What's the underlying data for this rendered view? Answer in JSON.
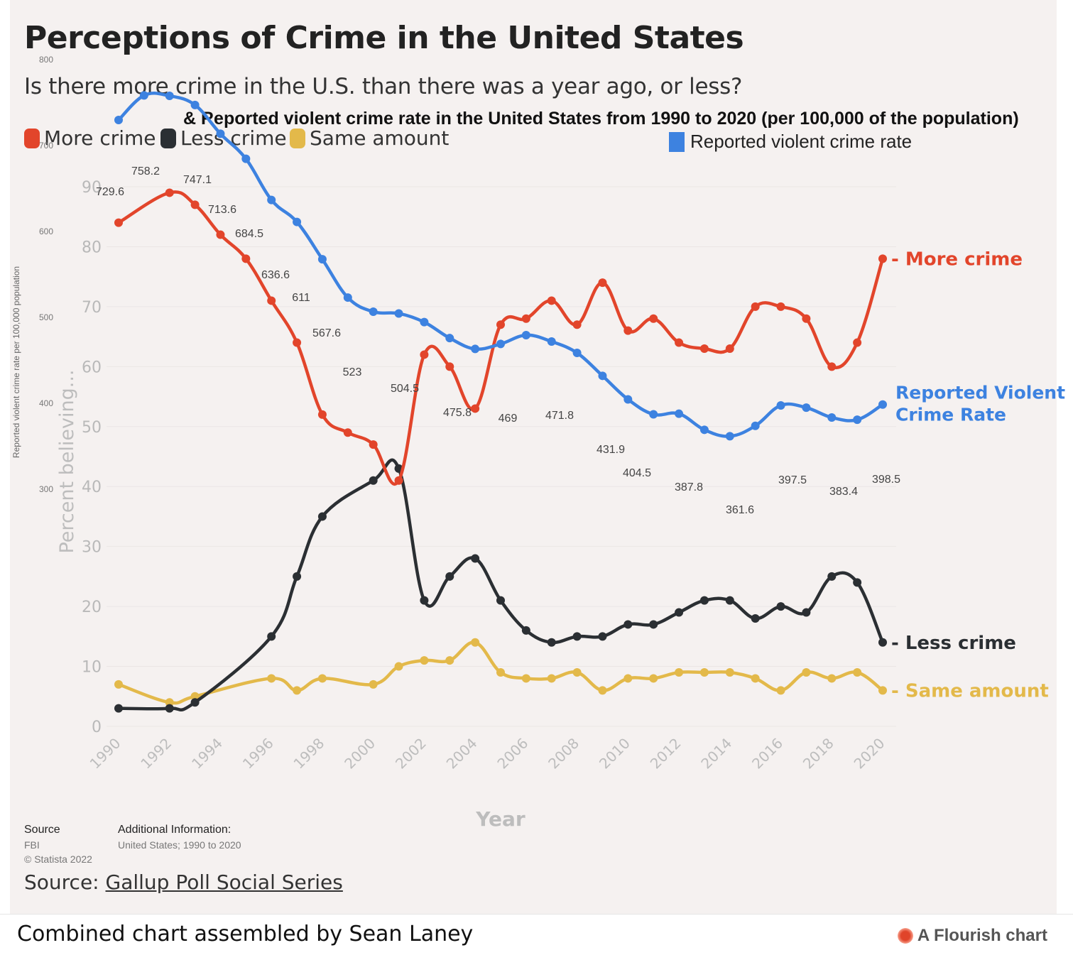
{
  "title": "Perceptions of Crime in the United States",
  "subtitle": "Is there more crime in the U.S. than there was a year ago, or less?",
  "subtitle2": "& Reported violent crime rate in the United States from 1990 to 2020 (per 100,000 of the population)",
  "legend": {
    "more": "More crime",
    "less": "Less crime",
    "same": "Same amount",
    "rate": "Reported violent crime rate"
  },
  "colors": {
    "more": "#e2452b",
    "less": "#2b2f33",
    "same": "#e3b94a",
    "rate": "#3d82e0"
  },
  "source": {
    "label": "Source",
    "org": "FBI",
    "copyright": "© Statista 2022",
    "additional_label": "Additional Information:",
    "additional_text": "United States; 1990 to 2020",
    "gallup_prefix": "Source: ",
    "gallup_link": "Gallup Poll Social Series"
  },
  "footer": {
    "credit": "Combined chart assembled by Sean Laney",
    "flourish": "A Flourish chart"
  },
  "chart_data": {
    "type": "line",
    "xlabel": "Year",
    "ylabel": "Percent believing...",
    "ylabel_right": "Reported violent crime rate per 100,000 population",
    "x_ticks": [
      1990,
      1992,
      1994,
      1996,
      1998,
      2000,
      2002,
      2004,
      2006,
      2008,
      2010,
      2012,
      2014,
      2016,
      2018,
      2020
    ],
    "percent_axis": {
      "ylim": [
        0,
        90
      ],
      "ticks": [
        0,
        10,
        20,
        30,
        40,
        50,
        60,
        70,
        80,
        90
      ]
    },
    "rate_axis": {
      "ylim": [
        300,
        800
      ],
      "ticks": [
        300,
        400,
        500,
        600,
        700,
        800
      ]
    },
    "series": [
      {
        "key": "more",
        "name": "More crime",
        "end_label": "More crime",
        "points": [
          [
            1990,
            84
          ],
          [
            1992,
            89
          ],
          [
            1993,
            87
          ],
          [
            1994,
            82
          ],
          [
            1995,
            78
          ],
          [
            1996,
            71
          ],
          [
            1997,
            64
          ],
          [
            1998,
            52
          ],
          [
            1999,
            49
          ],
          [
            2000,
            47
          ],
          [
            2001,
            41
          ],
          [
            2002,
            62
          ],
          [
            2003,
            60
          ],
          [
            2004,
            53
          ],
          [
            2005,
            67
          ],
          [
            2006,
            68
          ],
          [
            2007,
            71
          ],
          [
            2008,
            67
          ],
          [
            2009,
            74
          ],
          [
            2010,
            66
          ],
          [
            2011,
            68
          ],
          [
            2012,
            64
          ],
          [
            2013,
            63
          ],
          [
            2014,
            63
          ],
          [
            2015,
            70
          ],
          [
            2016,
            70
          ],
          [
            2017,
            68
          ],
          [
            2018,
            60
          ],
          [
            2019,
            64
          ],
          [
            2020,
            78
          ]
        ]
      },
      {
        "key": "less",
        "name": "Less crime",
        "end_label": "Less crime",
        "points": [
          [
            1990,
            3
          ],
          [
            1992,
            3
          ],
          [
            1993,
            4
          ],
          [
            1996,
            15
          ],
          [
            1997,
            25
          ],
          [
            1998,
            35
          ],
          [
            2000,
            41
          ],
          [
            2001,
            43
          ],
          [
            2002,
            21
          ],
          [
            2003,
            25
          ],
          [
            2004,
            28
          ],
          [
            2005,
            21
          ],
          [
            2006,
            16
          ],
          [
            2007,
            14
          ],
          [
            2008,
            15
          ],
          [
            2009,
            15
          ],
          [
            2010,
            17
          ],
          [
            2011,
            17
          ],
          [
            2012,
            19
          ],
          [
            2013,
            21
          ],
          [
            2014,
            21
          ],
          [
            2015,
            18
          ],
          [
            2016,
            20
          ],
          [
            2017,
            19
          ],
          [
            2018,
            25
          ],
          [
            2019,
            24
          ],
          [
            2020,
            14
          ]
        ]
      },
      {
        "key": "same",
        "name": "Same amount",
        "end_label": "Same amount",
        "points": [
          [
            1990,
            7
          ],
          [
            1992,
            4
          ],
          [
            1993,
            5
          ],
          [
            1996,
            8
          ],
          [
            1997,
            6
          ],
          [
            1998,
            8
          ],
          [
            2000,
            7
          ],
          [
            2001,
            10
          ],
          [
            2002,
            11
          ],
          [
            2003,
            11
          ],
          [
            2004,
            14
          ],
          [
            2005,
            9
          ],
          [
            2006,
            8
          ],
          [
            2007,
            8
          ],
          [
            2008,
            9
          ],
          [
            2009,
            6
          ],
          [
            2010,
            8
          ],
          [
            2011,
            8
          ],
          [
            2012,
            9
          ],
          [
            2013,
            9
          ],
          [
            2014,
            9
          ],
          [
            2015,
            8
          ],
          [
            2016,
            6
          ],
          [
            2017,
            9
          ],
          [
            2018,
            8
          ],
          [
            2019,
            9
          ],
          [
            2020,
            6
          ]
        ]
      },
      {
        "key": "rate",
        "name": "Reported violent crime rate",
        "end_label_lines": [
          "Reported Violent",
          "Crime Rate"
        ],
        "points": [
          [
            1990,
            729.6
          ],
          [
            1991,
            758.2
          ],
          [
            1992,
            757.7
          ],
          [
            1993,
            747.1
          ],
          [
            1994,
            713.6
          ],
          [
            1995,
            684.5
          ],
          [
            1996,
            636.6
          ],
          [
            1997,
            611
          ],
          [
            1998,
            567.6
          ],
          [
            1999,
            523
          ],
          [
            2000,
            506.5
          ],
          [
            2001,
            504.5
          ],
          [
            2002,
            494.4
          ],
          [
            2003,
            475.8
          ],
          [
            2004,
            463.2
          ],
          [
            2005,
            469
          ],
          [
            2006,
            479.3
          ],
          [
            2007,
            471.8
          ],
          [
            2008,
            458.6
          ],
          [
            2009,
            431.9
          ],
          [
            2010,
            404.5
          ],
          [
            2011,
            387.1
          ],
          [
            2012,
            387.8
          ],
          [
            2013,
            369.1
          ],
          [
            2014,
            361.6
          ],
          [
            2015,
            373.7
          ],
          [
            2016,
            397.5
          ],
          [
            2017,
            394.9
          ],
          [
            2018,
            383.4
          ],
          [
            2019,
            380.8
          ],
          [
            2020,
            398.5
          ]
        ],
        "labels": [
          [
            1990,
            "729.6"
          ],
          [
            1991,
            "758.2"
          ],
          [
            1993,
            "747.1"
          ],
          [
            1994,
            "713.6"
          ],
          [
            1995,
            "684.5"
          ],
          [
            1996,
            "636.6"
          ],
          [
            1997,
            "611"
          ],
          [
            1998,
            "567.6"
          ],
          [
            1999,
            "523"
          ],
          [
            2001,
            "504.5"
          ],
          [
            2003,
            "475.8"
          ],
          [
            2005,
            "469"
          ],
          [
            2007,
            "471.8"
          ],
          [
            2009,
            "431.9"
          ],
          [
            2010,
            "404.5"
          ],
          [
            2012,
            "387.8"
          ],
          [
            2014,
            "361.6"
          ],
          [
            2016,
            "397.5"
          ],
          [
            2018,
            "383.4"
          ],
          [
            2020,
            "398.5"
          ]
        ]
      }
    ]
  }
}
